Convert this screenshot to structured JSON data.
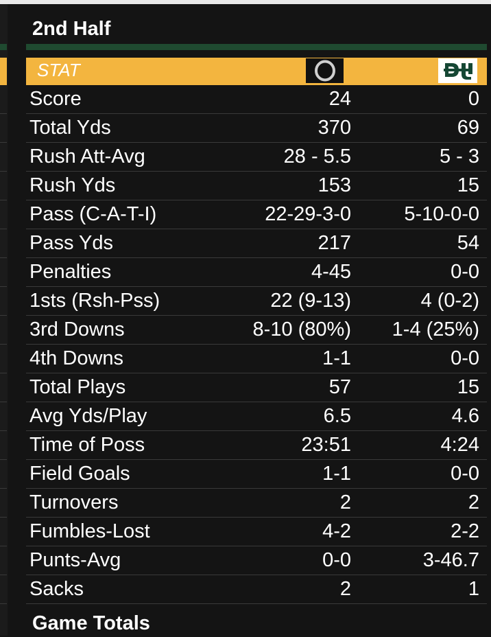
{
  "section": {
    "title": "2nd Half"
  },
  "header": {
    "stat_label": "STAT"
  },
  "stats": [
    {
      "label": "Score",
      "team_a": "24",
      "team_b": "0"
    },
    {
      "label": "Total Yds",
      "team_a": "370",
      "team_b": "69"
    },
    {
      "label": "Rush Att-Avg",
      "team_a": "28 - 5.5",
      "team_b": "5 - 3"
    },
    {
      "label": "Rush Yds",
      "team_a": "153",
      "team_b": "15"
    },
    {
      "label": "Pass (C-A-T-I)",
      "team_a": "22-29-3-0",
      "team_b": "5-10-0-0"
    },
    {
      "label": "Pass Yds",
      "team_a": "217",
      "team_b": "54"
    },
    {
      "label": "Penalties",
      "team_a": "4-45",
      "team_b": "0-0"
    },
    {
      "label": "1sts (Rsh-Pss)",
      "team_a": "22 (9-13)",
      "team_b": "4 (0-2)"
    },
    {
      "label": "3rd Downs",
      "team_a": "8-10 (80%)",
      "team_b": "1-4 (25%)"
    },
    {
      "label": "4th Downs",
      "team_a": "1-1",
      "team_b": "0-0"
    },
    {
      "label": "Total Plays",
      "team_a": "57",
      "team_b": "15"
    },
    {
      "label": "Avg Yds/Play",
      "team_a": "6.5",
      "team_b": "4.6"
    },
    {
      "label": "Time of Poss",
      "team_a": "23:51",
      "team_b": "4:24"
    },
    {
      "label": "Field Goals",
      "team_a": "1-1",
      "team_b": "0-0"
    },
    {
      "label": "Turnovers",
      "team_a": "2",
      "team_b": "2"
    },
    {
      "label": "Fumbles-Lost",
      "team_a": "4-2",
      "team_b": "2-2"
    },
    {
      "label": "Punts-Avg",
      "team_a": "0-0",
      "team_b": "3-46.7"
    },
    {
      "label": "Sacks",
      "team_a": "2",
      "team_b": "1"
    }
  ],
  "footer": {
    "title": "Game Totals"
  },
  "logos": {
    "team_a": "oregon-o-logo",
    "team_b": "baylor-bu-logo"
  },
  "colors": {
    "header_gold": "#f3b53f",
    "accent_green": "#1f4a30",
    "background": "#141414",
    "baylor_green": "#154734"
  }
}
